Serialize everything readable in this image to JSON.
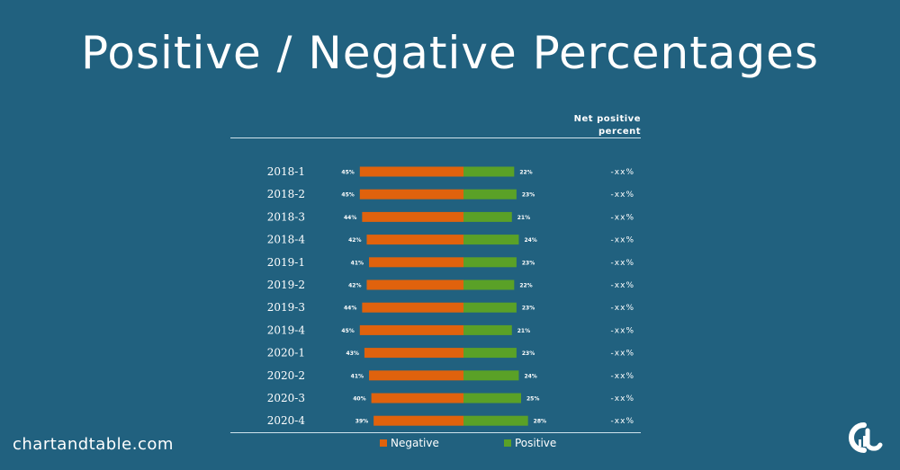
{
  "title": "Positive / Negative Percentages",
  "header": {
    "col_line1": "Net positive",
    "col_line2": "percent"
  },
  "brand": "chartandtable.com",
  "colors": {
    "background": "#21617f",
    "negative": "#e0620d",
    "positive": "#5aa127",
    "text": "#ffffff"
  },
  "chart_data": {
    "type": "bar",
    "orientation": "horizontal-diverging",
    "categories": [
      "2018-1",
      "2018-2",
      "2018-3",
      "2018-4",
      "2019-1",
      "2019-2",
      "2019-3",
      "2019-4",
      "2020-1",
      "2020-2",
      "2020-3",
      "2020-4"
    ],
    "series": [
      {
        "name": "Negative",
        "values": [
          45,
          45,
          44,
          42,
          41,
          42,
          44,
          45,
          43,
          41,
          40,
          39
        ],
        "labels": [
          "45%",
          "45%",
          "44%",
          "42%",
          "41%",
          "42%",
          "44%",
          "45%",
          "43%",
          "41%",
          "40%",
          "39%"
        ]
      },
      {
        "name": "Positive",
        "values": [
          22,
          23,
          21,
          24,
          23,
          22,
          23,
          21,
          23,
          24,
          25,
          28
        ],
        "labels": [
          "22%",
          "23%",
          "21%",
          "24%",
          "23%",
          "22%",
          "23%",
          "21%",
          "23%",
          "24%",
          "25%",
          "28%"
        ]
      }
    ],
    "net_positive": [
      "-xx%",
      "-xx%",
      "-xx%",
      "-xx%",
      "-xx%",
      "-xx%",
      "-xx%",
      "-xx%",
      "-xx%",
      "-xx%",
      "-xx%",
      "-xx%"
    ],
    "legend": [
      "Negative",
      "Positive"
    ],
    "legend_position": "bottom"
  }
}
